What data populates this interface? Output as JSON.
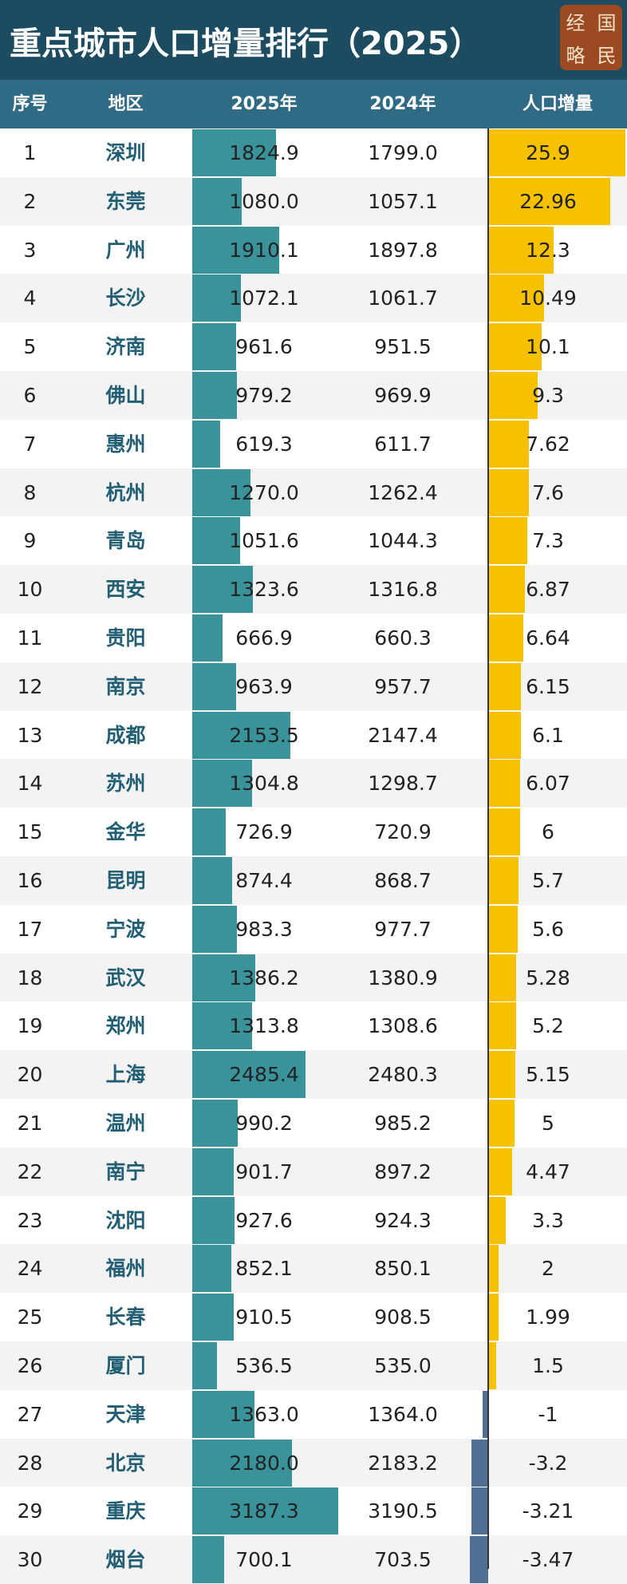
{
  "header": {
    "title": "重点城市人口增量排行（2025）",
    "logo": [
      "经",
      "国",
      "略",
      "民"
    ]
  },
  "table": {
    "columns": [
      "序号",
      "地区",
      "2025年",
      "2024年",
      "人口增量"
    ],
    "rows": [
      [
        1,
        "深圳",
        1824.9,
        {
          "value": 1799,
          "label": "1799.0"
        },
        25.9
      ],
      [
        2,
        "东莞",
        {
          "value": 1080,
          "label": "1080.0"
        },
        1057.1,
        22.96
      ],
      [
        3,
        "广州",
        1910.1,
        1897.8,
        12.3
      ],
      [
        4,
        "长沙",
        1072.1,
        1061.7,
        10.49
      ],
      [
        5,
        "济南",
        961.6,
        951.5,
        10.1
      ],
      [
        6,
        "佛山",
        979.2,
        969.9,
        9.3
      ],
      [
        7,
        "惠州",
        619.3,
        611.7,
        7.62
      ],
      [
        8,
        "杭州",
        {
          "value": 1270,
          "label": "1270.0"
        },
        1262.4,
        7.6
      ],
      [
        9,
        "青岛",
        1051.6,
        1044.3,
        7.3
      ],
      [
        10,
        "西安",
        1323.6,
        1316.8,
        6.87
      ],
      [
        11,
        "贵阳",
        666.9,
        660.3,
        6.64
      ],
      [
        12,
        "南京",
        963.9,
        957.7,
        6.15
      ],
      [
        13,
        "成都",
        2153.5,
        2147.4,
        6.1
      ],
      [
        14,
        "苏州",
        1304.8,
        1298.7,
        6.07
      ],
      [
        15,
        "金华",
        726.9,
        720.9,
        6
      ],
      [
        16,
        "昆明",
        874.4,
        868.7,
        5.7
      ],
      [
        17,
        "宁波",
        983.3,
        977.7,
        5.6
      ],
      [
        18,
        "武汉",
        1386.2,
        1380.9,
        5.28
      ],
      [
        19,
        "郑州",
        1313.8,
        1308.6,
        5.2
      ],
      [
        20,
        "上海",
        2485.4,
        2480.3,
        5.15
      ],
      [
        21,
        "温州",
        990.2,
        985.2,
        5
      ],
      [
        22,
        "南宁",
        901.7,
        897.2,
        4.47
      ],
      [
        23,
        "沈阳",
        927.6,
        924.3,
        3.3
      ],
      [
        24,
        "福州",
        852.1,
        850.1,
        2
      ],
      [
        25,
        "长春",
        910.5,
        908.5,
        1.99
      ],
      [
        26,
        "厦门",
        536.5,
        {
          "value": 535,
          "label": "535.0"
        },
        1.5
      ],
      [
        27,
        "天津",
        {
          "value": 1363,
          "label": "1363.0"
        },
        {
          "value": 1364,
          "label": "1364.0"
        },
        -1
      ],
      [
        28,
        "北京",
        {
          "value": 2180,
          "label": "2180.0"
        },
        2183.2,
        -3.2
      ],
      [
        29,
        "重庆",
        3187.3,
        3190.5,
        -3.21
      ],
      [
        30,
        "烟台",
        700.1,
        703.5,
        -3.47
      ]
    ]
  }
}
